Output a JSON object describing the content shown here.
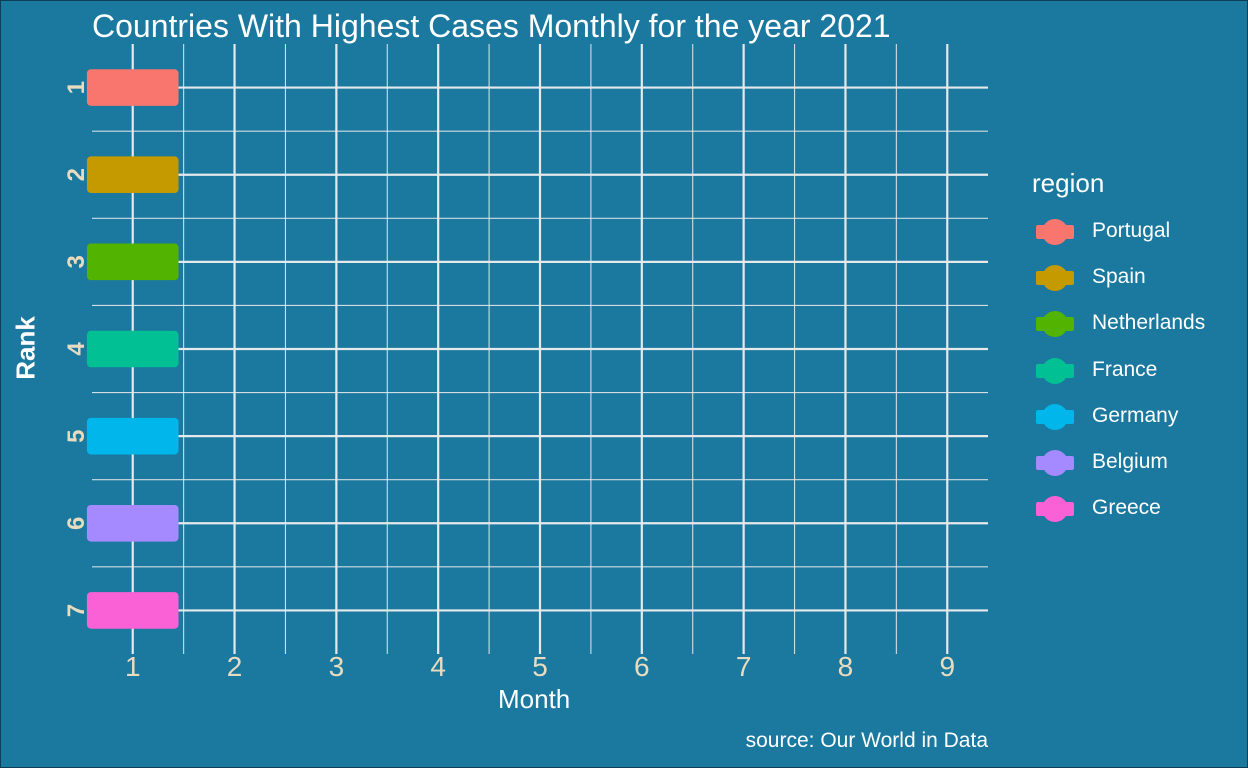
{
  "chart_data": {
    "type": "bar",
    "title": "Countries With Highest Cases Monthly for the year 2021",
    "xlabel": "Month",
    "ylabel": "Rank",
    "caption": "source: Our World in Data",
    "x_ticks": [
      "1",
      "2",
      "3",
      "4",
      "5",
      "6",
      "7",
      "8",
      "9"
    ],
    "y_ticks": [
      "1",
      "2",
      "3",
      "4",
      "5",
      "6",
      "7"
    ],
    "xlim": [
      0.6,
      9.4
    ],
    "ylim": [
      0.5,
      7.5
    ],
    "grid": true,
    "legend_title": "region",
    "legend_position": "right",
    "bars": [
      {
        "region": "Portugal",
        "rank": 1,
        "month": 1,
        "color": "#f8766d"
      },
      {
        "region": "Spain",
        "rank": 2,
        "month": 1,
        "color": "#c49a00"
      },
      {
        "region": "Netherlands",
        "rank": 3,
        "month": 1,
        "color": "#53b400"
      },
      {
        "region": "France",
        "rank": 4,
        "month": 1,
        "color": "#00c094"
      },
      {
        "region": "Germany",
        "rank": 5,
        "month": 1,
        "color": "#00b6eb"
      },
      {
        "region": "Belgium",
        "rank": 6,
        "month": 1,
        "color": "#a58aff"
      },
      {
        "region": "Greece",
        "rank": 7,
        "month": 1,
        "color": "#fb61d7"
      }
    ]
  }
}
